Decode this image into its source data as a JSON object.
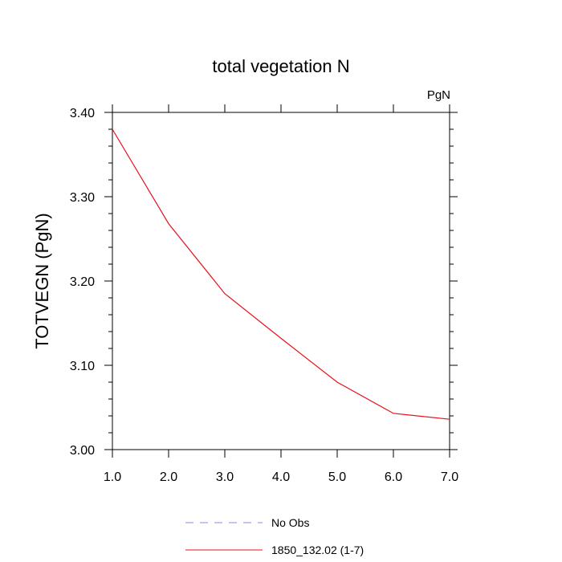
{
  "chart_data": {
    "type": "line",
    "title": "total vegetation N",
    "units_label": "PgN",
    "xlabel": "",
    "ylabel": "TOTVEGN  (PgN)",
    "xlim": [
      1.0,
      7.0
    ],
    "ylim": [
      3.0,
      3.4
    ],
    "x_ticks": [
      "1.0",
      "2.0",
      "3.0",
      "4.0",
      "5.0",
      "6.0",
      "7.0"
    ],
    "y_ticks": [
      "3.00",
      "3.10",
      "3.20",
      "3.30",
      "3.40"
    ],
    "x": [
      1,
      2,
      3,
      4,
      5,
      6,
      7
    ],
    "series": [
      {
        "name": "1850_132.02 (1-7)",
        "color": "#e8101a",
        "style": "solid",
        "values": [
          3.38,
          3.268,
          3.185,
          3.132,
          3.08,
          3.043,
          3.036
        ]
      }
    ],
    "legend": [
      {
        "label": "No Obs",
        "color": "#8a8ae6",
        "style": "dashed"
      },
      {
        "label": "1850_132.02 (1-7)",
        "color": "#e8101a",
        "style": "solid"
      }
    ],
    "legend_position": "bottom-center",
    "grid": false
  }
}
